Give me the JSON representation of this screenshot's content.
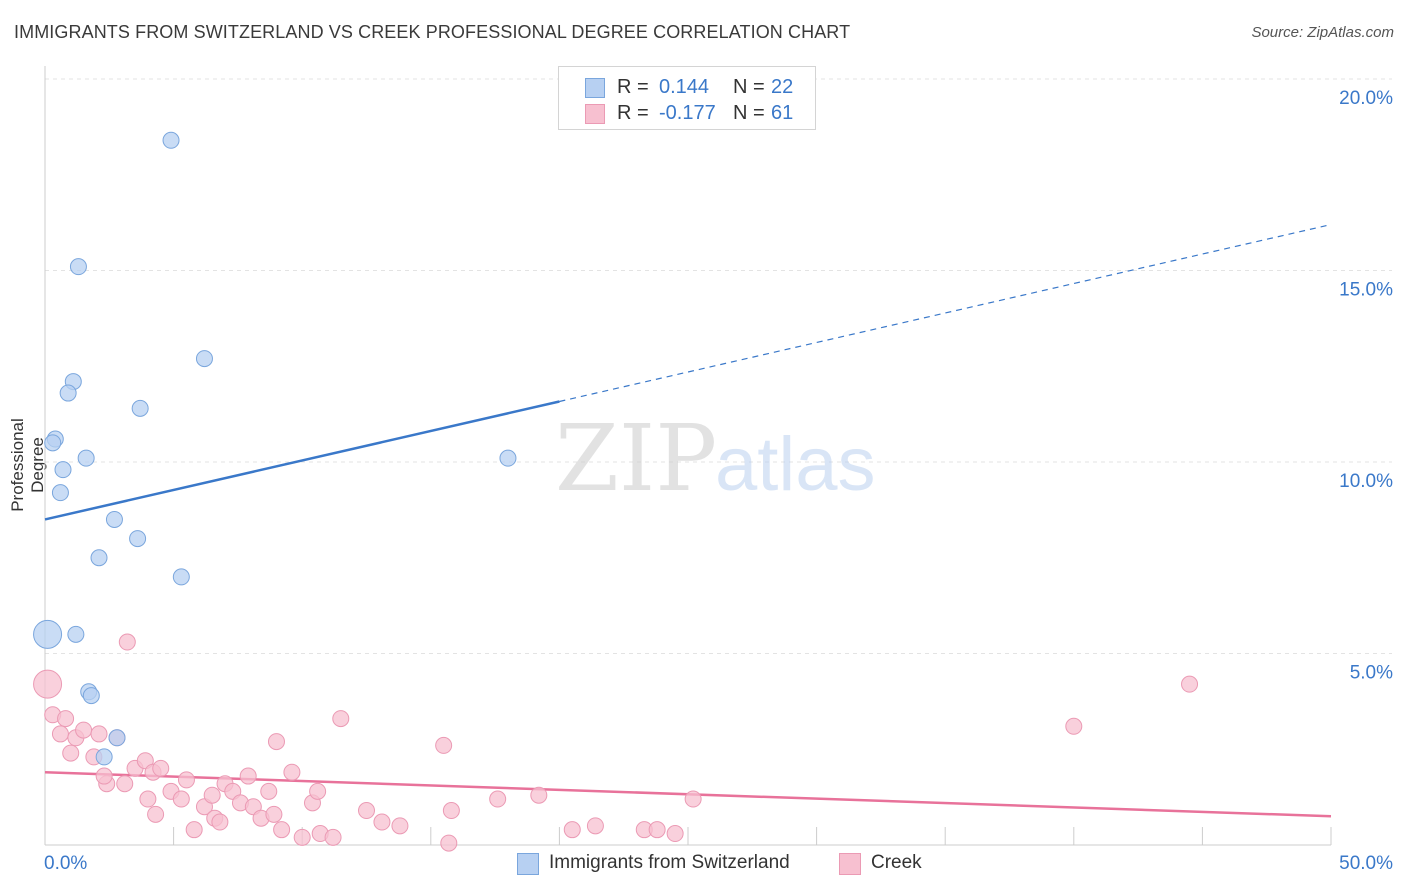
{
  "colors": {
    "blue": "#3a78c9",
    "blue_fill": "#b7d0f2",
    "blue_stroke": "#7aa6dd",
    "pink": "#e8729a",
    "pink_fill": "#f7c0d0",
    "pink_stroke": "#eb9ab4",
    "grid": "#e3e3e3",
    "axis": "#cccccc",
    "tick_text": "#3a78c9"
  },
  "chart_data": {
    "type": "scatter",
    "title": "IMMIGRANTS FROM SWITZERLAND VS CREEK PROFESSIONAL DEGREE CORRELATION CHART",
    "source": "Source: ZipAtlas.com",
    "xlabel": "",
    "ylabel": "Professional Degree",
    "xlim": [
      0,
      50
    ],
    "ylim": [
      0,
      20
    ],
    "x_tick_labels": [
      "0.0%",
      "50.0%"
    ],
    "y_ticks": [
      5,
      10,
      15,
      20
    ],
    "y_tick_labels": [
      "5.0%",
      "10.0%",
      "15.0%",
      "20.0%"
    ],
    "grid": true,
    "watermark": {
      "zip": "ZIP",
      "atlas": "atlas"
    },
    "legend_stats": {
      "r_label": "R =",
      "n_label": "N =",
      "rows": [
        {
          "r": "0.144",
          "n": "22"
        },
        {
          "r": "-0.177",
          "n": "61"
        }
      ]
    },
    "series": [
      {
        "name": "Immigrants from Switzerland",
        "color": "#3a78c9",
        "trend": {
          "x1": 0,
          "y1": 8.5,
          "x2": 50,
          "y2": 16.2,
          "solid_until_x": 20
        },
        "points": [
          [
            4.9,
            18.4
          ],
          [
            1.3,
            15.1
          ],
          [
            6.2,
            12.7
          ],
          [
            1.1,
            12.1
          ],
          [
            0.9,
            11.8
          ],
          [
            3.7,
            11.4
          ],
          [
            0.4,
            10.6
          ],
          [
            0.3,
            10.5
          ],
          [
            1.6,
            10.1
          ],
          [
            18.0,
            10.1
          ],
          [
            0.7,
            9.8
          ],
          [
            0.6,
            9.2
          ],
          [
            2.7,
            8.5
          ],
          [
            3.6,
            8.0
          ],
          [
            2.1,
            7.5
          ],
          [
            5.3,
            7.0
          ],
          [
            0.1,
            5.5
          ],
          [
            1.2,
            5.5
          ],
          [
            1.7,
            4.0
          ],
          [
            1.8,
            3.9
          ],
          [
            2.8,
            2.8
          ],
          [
            2.3,
            2.3
          ]
        ],
        "sizes": [
          8,
          8,
          8,
          8,
          8,
          8,
          8,
          8,
          8,
          8,
          8,
          8,
          8,
          8,
          8,
          8,
          14,
          8,
          8,
          8,
          8,
          8
        ]
      },
      {
        "name": "Creek",
        "color": "#e8729a",
        "trend": {
          "x1": 0,
          "y1": 1.9,
          "x2": 50,
          "y2": 0.75
        },
        "points": [
          [
            0.1,
            4.2
          ],
          [
            3.2,
            5.3
          ],
          [
            44.5,
            4.2
          ],
          [
            40.0,
            3.1
          ],
          [
            0.3,
            3.4
          ],
          [
            0.8,
            3.3
          ],
          [
            11.5,
            3.3
          ],
          [
            0.6,
            2.9
          ],
          [
            1.2,
            2.8
          ],
          [
            1.5,
            3.0
          ],
          [
            2.1,
            2.9
          ],
          [
            2.8,
            2.8
          ],
          [
            9.0,
            2.7
          ],
          [
            15.5,
            2.6
          ],
          [
            1.0,
            2.4
          ],
          [
            1.9,
            2.3
          ],
          [
            2.4,
            1.6
          ],
          [
            3.1,
            1.6
          ],
          [
            3.5,
            2.0
          ],
          [
            3.9,
            2.2
          ],
          [
            4.2,
            1.9
          ],
          [
            4.5,
            2.0
          ],
          [
            5.5,
            1.7
          ],
          [
            2.3,
            1.8
          ],
          [
            4.0,
            1.2
          ],
          [
            4.3,
            0.8
          ],
          [
            4.9,
            1.4
          ],
          [
            5.3,
            1.2
          ],
          [
            6.2,
            1.0
          ],
          [
            6.5,
            1.3
          ],
          [
            7.0,
            1.6
          ],
          [
            7.3,
            1.4
          ],
          [
            7.6,
            1.1
          ],
          [
            7.9,
            1.8
          ],
          [
            8.1,
            1.0
          ],
          [
            8.4,
            0.7
          ],
          [
            8.7,
            1.4
          ],
          [
            9.6,
            1.9
          ],
          [
            10.4,
            1.1
          ],
          [
            10.6,
            1.4
          ],
          [
            6.6,
            0.7
          ],
          [
            6.8,
            0.6
          ],
          [
            5.8,
            0.4
          ],
          [
            8.9,
            0.8
          ],
          [
            12.5,
            0.9
          ],
          [
            13.1,
            0.6
          ],
          [
            13.8,
            0.5
          ],
          [
            15.8,
            0.9
          ],
          [
            17.6,
            1.2
          ],
          [
            19.2,
            1.3
          ],
          [
            20.5,
            0.4
          ],
          [
            21.4,
            0.5
          ],
          [
            23.3,
            0.4
          ],
          [
            23.8,
            0.4
          ],
          [
            24.5,
            0.3
          ],
          [
            25.2,
            1.2
          ],
          [
            10.0,
            0.2
          ],
          [
            10.7,
            0.3
          ],
          [
            9.2,
            0.4
          ],
          [
            15.7,
            0.05
          ],
          [
            11.2,
            0.2
          ]
        ],
        "sizes": [
          14,
          8,
          8,
          8,
          8,
          8,
          8,
          8,
          8,
          8,
          8,
          8,
          8,
          8,
          8,
          8,
          8,
          8,
          8,
          8,
          8,
          8,
          8,
          8,
          8,
          8,
          8,
          8,
          8,
          8,
          8,
          8,
          8,
          8,
          8,
          8,
          8,
          8,
          8,
          8,
          8,
          8,
          8,
          8,
          8,
          8,
          8,
          8,
          8,
          8,
          8,
          8,
          8,
          8,
          8,
          8,
          8,
          8,
          8,
          8,
          8
        ]
      }
    ]
  }
}
